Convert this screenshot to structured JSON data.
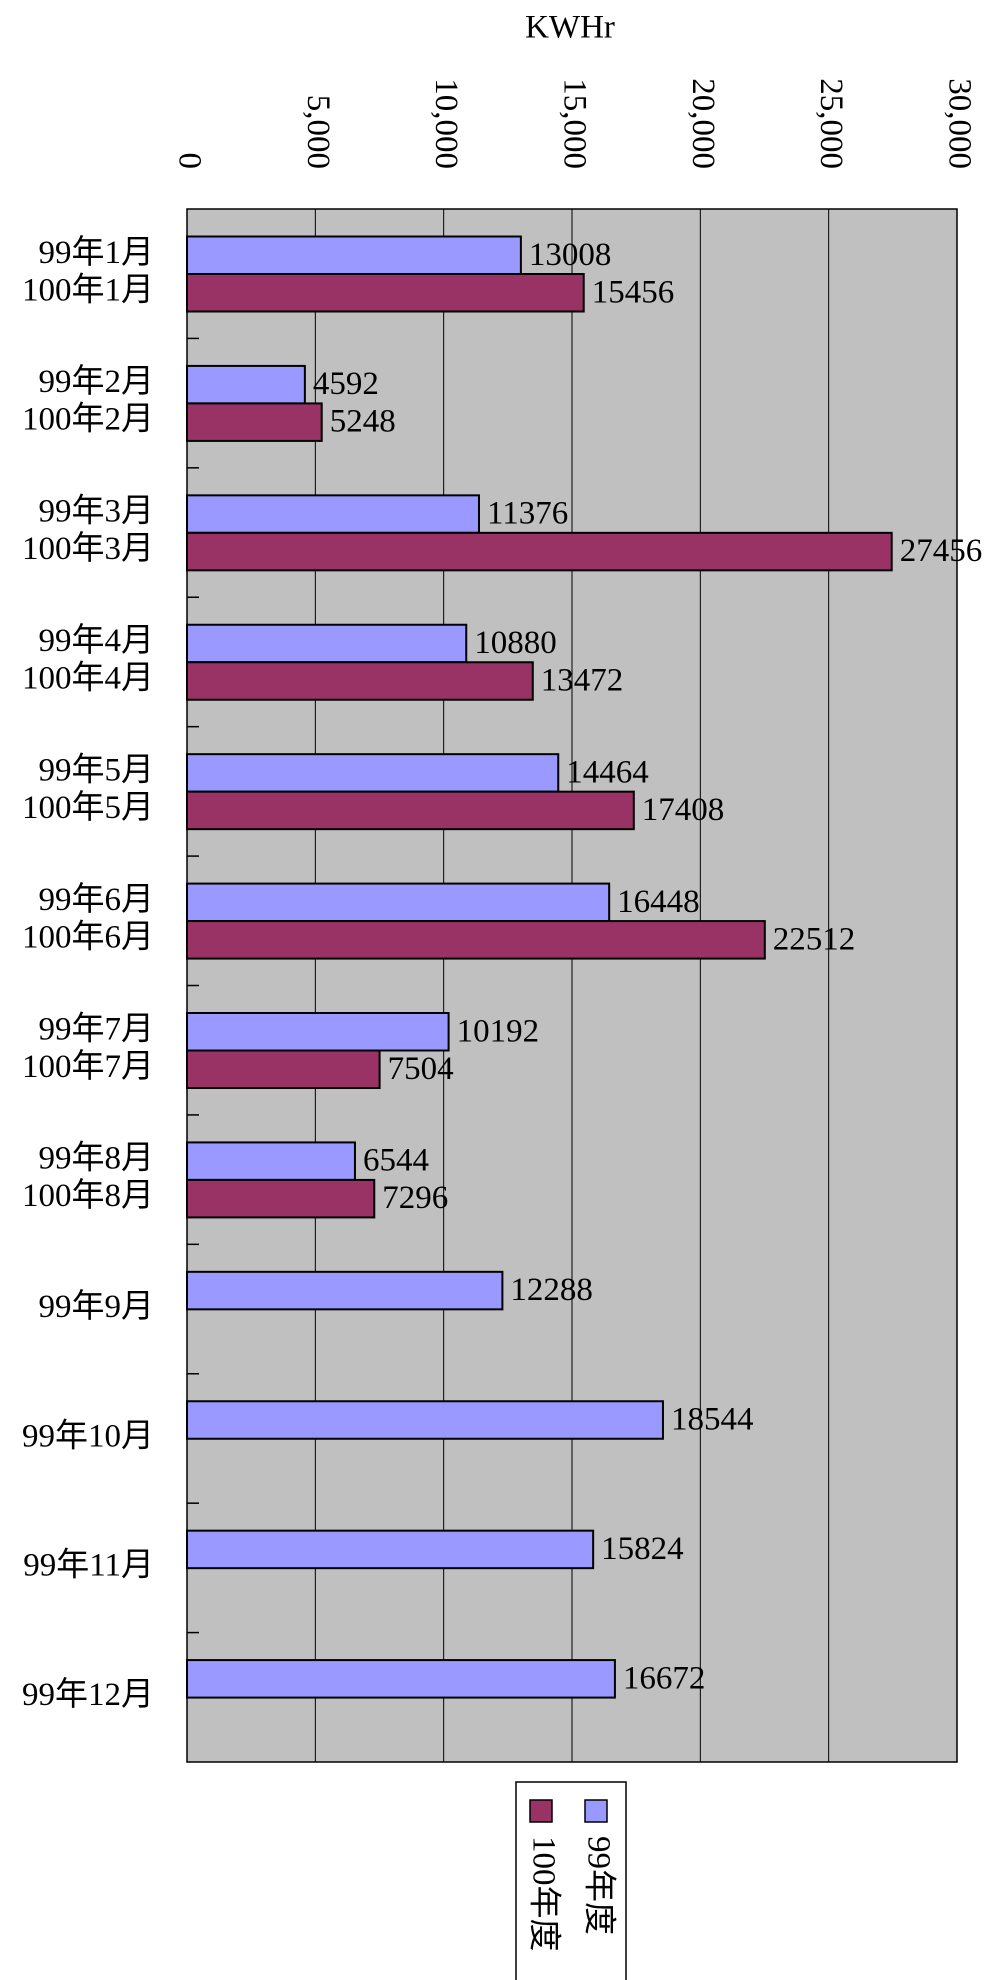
{
  "chart_data": {
    "type": "bar",
    "orientation": "horizontal",
    "x_label": "KWHr",
    "categories": [
      [
        "99年1月",
        "100年1月"
      ],
      [
        "99年2月",
        "100年2月"
      ],
      [
        "99年3月",
        "100年3月"
      ],
      [
        "99年4月",
        "100年4月"
      ],
      [
        "99年5月",
        "100年5月"
      ],
      [
        "99年6月",
        "100年6月"
      ],
      [
        "99年7月",
        "100年7月"
      ],
      [
        "99年8月",
        "100年8月"
      ],
      [
        "99年9月"
      ],
      [
        "99年10月"
      ],
      [
        "99年11月"
      ],
      [
        "99年12月"
      ]
    ],
    "series": [
      {
        "name": "99年度",
        "color": "#9999ff",
        "values": [
          13008,
          4592,
          11376,
          10880,
          14464,
          16448,
          10192,
          6544,
          12288,
          18544,
          15824,
          16672
        ]
      },
      {
        "name": "100年度",
        "color": "#993366",
        "values": [
          15456,
          5248,
          27456,
          13472,
          17408,
          22512,
          7504,
          7296,
          null,
          null,
          null,
          null
        ]
      }
    ],
    "xlim": [
      0,
      30000
    ],
    "xticks": [
      0,
      {
        "value": 5000,
        "label": "5,000"
      },
      {
        "value": 10000,
        "label": "10,000"
      },
      {
        "value": 15000,
        "label": "15,000"
      },
      {
        "value": 20000,
        "label": "20,000"
      },
      {
        "value": 25000,
        "label": "25,000"
      },
      {
        "value": 30000,
        "label": "30,000"
      }
    ],
    "grid": true,
    "plot_background": "#c0c0c0",
    "legend": "bottom"
  }
}
